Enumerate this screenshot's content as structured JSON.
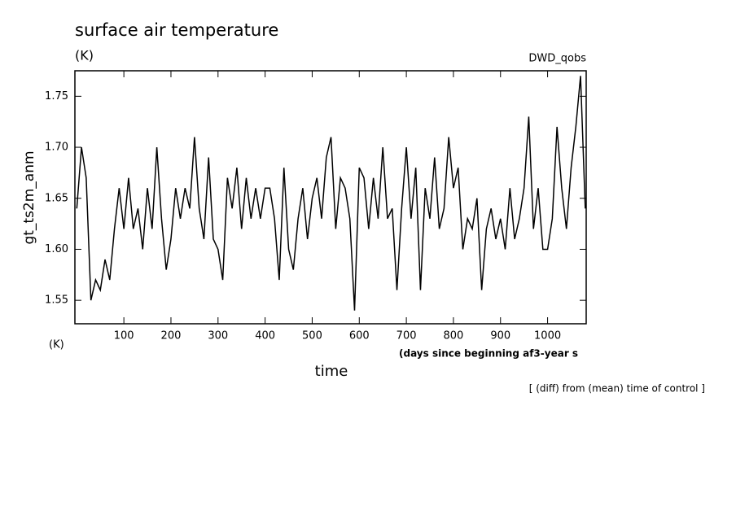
{
  "chart_data": {
    "type": "line",
    "title": "surface air temperature",
    "subtitle": "(K)",
    "source_label": "DWD_qobs",
    "y_label": "gt_ts2m_anm",
    "y_unit": "(K)",
    "x_note": "(days since beginning af3-year s",
    "x_label": "time",
    "footnote": "[ (diff) from (mean) time of control ]",
    "xlim": [
      -4,
      1082
    ],
    "ylim": [
      1.527,
      1.775
    ],
    "xticks": [
      100,
      200,
      300,
      400,
      500,
      600,
      700,
      800,
      900,
      1000
    ],
    "yticks": [
      {
        "value": 1.55,
        "label": "1.55"
      },
      {
        "value": 1.6,
        "label": "1.60"
      },
      {
        "value": 1.65,
        "label": "1.65"
      },
      {
        "value": 1.7,
        "label": "1.70"
      },
      {
        "value": 1.75,
        "label": "1.75"
      }
    ],
    "x": [
      0,
      10,
      20,
      30,
      40,
      50,
      60,
      70,
      80,
      90,
      100,
      110,
      120,
      130,
      140,
      150,
      160,
      170,
      180,
      190,
      200,
      210,
      220,
      230,
      240,
      250,
      260,
      270,
      280,
      290,
      300,
      310,
      320,
      330,
      340,
      350,
      360,
      370,
      380,
      390,
      400,
      410,
      420,
      430,
      440,
      450,
      460,
      470,
      480,
      490,
      500,
      510,
      520,
      530,
      540,
      550,
      560,
      570,
      580,
      590,
      600,
      610,
      620,
      630,
      640,
      650,
      660,
      670,
      680,
      690,
      700,
      710,
      720,
      730,
      740,
      750,
      760,
      770,
      780,
      790,
      800,
      810,
      820,
      830,
      840,
      850,
      860,
      870,
      880,
      890,
      900,
      910,
      920,
      930,
      940,
      950,
      960,
      970,
      980,
      990,
      1000,
      1010,
      1020,
      1030,
      1040,
      1050,
      1060,
      1070,
      1080
    ],
    "series": [
      {
        "color": "#000000",
        "values": [
          1.64,
          1.7,
          1.67,
          1.55,
          1.57,
          1.56,
          1.59,
          1.57,
          1.62,
          1.66,
          1.62,
          1.67,
          1.62,
          1.64,
          1.6,
          1.66,
          1.62,
          1.7,
          1.63,
          1.58,
          1.61,
          1.66,
          1.63,
          1.66,
          1.64,
          1.71,
          1.64,
          1.61,
          1.69,
          1.61,
          1.6,
          1.57,
          1.67,
          1.64,
          1.68,
          1.62,
          1.67,
          1.63,
          1.66,
          1.63,
          1.66,
          1.66,
          1.63,
          1.57,
          1.68,
          1.6,
          1.58,
          1.63,
          1.66,
          1.61,
          1.65,
          1.67,
          1.63,
          1.69,
          1.71,
          1.62,
          1.67,
          1.66,
          1.63,
          1.54,
          1.68,
          1.67,
          1.62,
          1.67,
          1.63,
          1.7,
          1.63,
          1.64,
          1.56,
          1.64,
          1.7,
          1.63,
          1.68,
          1.56,
          1.66,
          1.63,
          1.69,
          1.62,
          1.64,
          1.71,
          1.66,
          1.68,
          1.6,
          1.63,
          1.62,
          1.65,
          1.56,
          1.62,
          1.64,
          1.61,
          1.63,
          1.6,
          1.66,
          1.61,
          1.63,
          1.66,
          1.73,
          1.62,
          1.66,
          1.6,
          1.6,
          1.63,
          1.72,
          1.66,
          1.62,
          1.68,
          1.72,
          1.77,
          1.64
        ]
      }
    ]
  }
}
